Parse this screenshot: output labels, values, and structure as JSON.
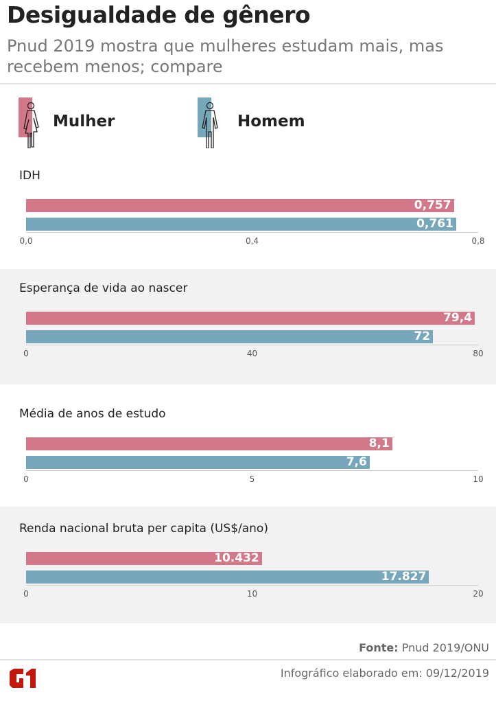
{
  "header": {
    "title": "Desigualdade de gênero",
    "subtitle": "Pnud 2019 mostra que mulheres estudam mais, mas recebem menos; compare"
  },
  "legend": [
    {
      "label": "Mulher",
      "color": "#d27889",
      "icon": "woman-icon"
    },
    {
      "label": "Homem",
      "color": "#77a7ba",
      "icon": "man-icon"
    }
  ],
  "chart_data": [
    {
      "type": "bar",
      "orientation": "horizontal",
      "title": "IDH",
      "xlim": [
        0,
        0.8
      ],
      "ticks": [
        "0,0",
        "0,4",
        "0,8"
      ],
      "tick_values": [
        0,
        0.4,
        0.8
      ],
      "series": [
        {
          "name": "Mulher",
          "values": [
            0.757
          ],
          "labels": [
            "0,757"
          ]
        },
        {
          "name": "Homem",
          "values": [
            0.761
          ],
          "labels": [
            "0,761"
          ]
        }
      ],
      "background": "#ffffff"
    },
    {
      "type": "bar",
      "orientation": "horizontal",
      "title": "Esperança de vida ao nascer",
      "xlim": [
        0,
        80
      ],
      "ticks": [
        "0",
        "40",
        "80"
      ],
      "tick_values": [
        0,
        40,
        80
      ],
      "series": [
        {
          "name": "Mulher",
          "values": [
            79.4
          ],
          "labels": [
            "79,4"
          ]
        },
        {
          "name": "Homem",
          "values": [
            72
          ],
          "labels": [
            "72"
          ]
        }
      ],
      "background": "#f2f2f2"
    },
    {
      "type": "bar",
      "orientation": "horizontal",
      "title": "Média de anos de estudo",
      "xlim": [
        0,
        10
      ],
      "ticks": [
        "0",
        "5",
        "10"
      ],
      "tick_values": [
        0,
        5,
        10
      ],
      "series": [
        {
          "name": "Mulher",
          "values": [
            8.1
          ],
          "labels": [
            "8,1"
          ]
        },
        {
          "name": "Homem",
          "values": [
            7.6
          ],
          "labels": [
            "7,6"
          ]
        }
      ],
      "background": "#ffffff"
    },
    {
      "type": "bar",
      "orientation": "horizontal",
      "title": "Renda nacional bruta per capita (US$/ano)",
      "xlim": [
        0,
        20
      ],
      "ticks": [
        "0",
        "10",
        "20"
      ],
      "tick_values": [
        0,
        10,
        20
      ],
      "series": [
        {
          "name": "Mulher",
          "values": [
            10.432
          ],
          "labels": [
            "10.432"
          ]
        },
        {
          "name": "Homem",
          "values": [
            17.827
          ],
          "labels": [
            "17.827"
          ]
        }
      ],
      "background": "#f2f2f2"
    }
  ],
  "footer": {
    "source_label": "Fonte:",
    "source": " Pnud 2019/ONU",
    "date_text": "Infográfico elaborado em: 09/12/2019",
    "logo": "G1"
  }
}
